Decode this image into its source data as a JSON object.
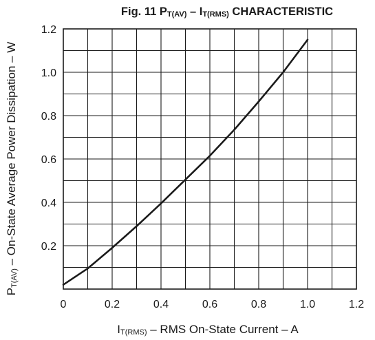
{
  "chart_data": {
    "type": "line",
    "title": {
      "prefix": "Fig. 11  ",
      "p_main": "P",
      "p_sub": "T(AV)",
      "dash": " – ",
      "i_main": "I",
      "i_sub": "T(RMS)",
      "suffix": " CHARACTERISTIC"
    },
    "xlabel": {
      "main": "I",
      "sub": "T(RMS)",
      "rest": " – RMS On-State Current – A"
    },
    "ylabel": {
      "main": "P",
      "sub": "T(AV)",
      "rest": " – On-State Average Power Dissipation – W"
    },
    "xlim": [
      0,
      1.2
    ],
    "ylim": [
      0,
      1.2
    ],
    "x_ticks": [
      0,
      0.2,
      0.4,
      0.6,
      0.8,
      1.0,
      1.2
    ],
    "x_tick_labels": [
      "0",
      "0.2",
      "0.4",
      "0.6",
      "0.8",
      "1.0",
      "1.2"
    ],
    "y_ticks": [
      0.2,
      0.4,
      0.6,
      0.8,
      1.0,
      1.2
    ],
    "y_tick_labels": [
      "0.2",
      "0.4",
      "0.6",
      "0.8",
      "1.0",
      "1.2"
    ],
    "grid": true,
    "grid_x_step": 0.1,
    "grid_y_step": 0.1,
    "series": [
      {
        "color": "#1a1a1a",
        "x": [
          0.0,
          0.1,
          0.2,
          0.3,
          0.4,
          0.5,
          0.6,
          0.7,
          0.8,
          0.9,
          1.0
        ],
        "y": [
          0.02,
          0.095,
          0.19,
          0.29,
          0.395,
          0.505,
          0.615,
          0.735,
          0.865,
          1.0,
          1.15
        ]
      }
    ]
  }
}
